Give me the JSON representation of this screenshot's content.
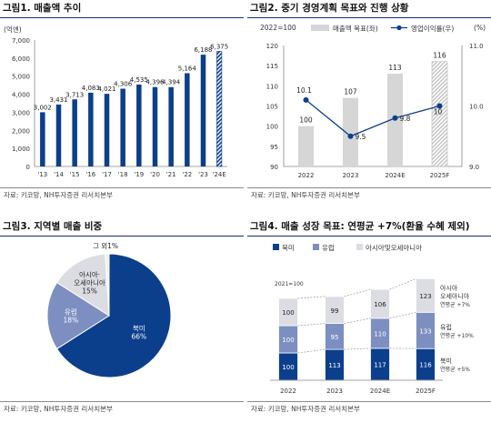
{
  "panels": [
    {
      "title": "그림1. 매출액 추이",
      "source": "자료: 키코망, NH투자증권 리서치본부"
    },
    {
      "title": "그림2. 중기 경영계획 목표와 진행 상황",
      "source": "자료: 키코망, NH투자증권 리서치본부"
    },
    {
      "title": "그림3. 지역별 매출 비중",
      "source": "자료: 키코망, NH투자증권 리서치본부"
    },
    {
      "title": "그림4. 매출 성장 목표: 연평균 +7%(환율 수혜 제외)",
      "source": "자료: 키코망, NH투자증권 리서치본부"
    }
  ],
  "colors": {
    "navy": "#0b3f8c",
    "mid_blue": "#7c8fc0",
    "light": "#dcdde3",
    "gray_bar": "#d6d6d6",
    "line": "#0b3f8c"
  },
  "chart_data": [
    {
      "type": "bar",
      "title": "그림1. 매출액 추이",
      "ylabel": "(억엔)",
      "ylim": [
        0,
        7000
      ],
      "yticks": [
        "0",
        "1,000",
        "2,000",
        "3,000",
        "4,000",
        "5,000",
        "6,000",
        "7,000"
      ],
      "categories": [
        "'13",
        "'14",
        "'15",
        "'16",
        "'17",
        "'18",
        "'19",
        "'20",
        "'21",
        "'22",
        "'23",
        "'24E"
      ],
      "values": [
        3002,
        3431,
        3713,
        4083,
        4021,
        4306,
        4535,
        4396,
        4394,
        5164,
        6188,
        6375
      ],
      "value_labels": [
        "3,002",
        "3,431",
        "3,713",
        "4,083",
        "4,021",
        "4,306",
        "4,535",
        "4,396",
        "4,394",
        "5,164",
        "6,188",
        "6,375"
      ],
      "estimate_last": true
    },
    {
      "type": "bar",
      "title": "그림2. 중기 경영계획 목표와 진행 상황",
      "index_note": "2022=100",
      "right_unit": "(%)",
      "categories": [
        "2022",
        "2023",
        "2024E",
        "2025F"
      ],
      "ylim": [
        90,
        120
      ],
      "yticks": [
        "90",
        "95",
        "100",
        "105",
        "110",
        "115",
        "120"
      ],
      "y2lim": [
        9.0,
        11.0
      ],
      "y2ticks": [
        "9.0",
        "10.0",
        "11.0"
      ],
      "series": [
        {
          "name": "매출액 목표(좌)",
          "kind": "bar",
          "values": [
            100,
            107,
            113,
            116
          ],
          "labels": [
            "100",
            "107",
            "113",
            "116"
          ]
        },
        {
          "name": "영업이익률(우)",
          "kind": "line",
          "values": [
            10.1,
            9.5,
            9.8,
            10.0
          ],
          "labels": [
            "10.1",
            "9.5",
            "9.8",
            "10"
          ]
        }
      ]
    },
    {
      "type": "pie",
      "title": "그림3. 지역별 매출 비중",
      "slices": [
        {
          "name": "북미",
          "value": 66,
          "label": "66%"
        },
        {
          "name": "유럽",
          "value": 18,
          "label": "18%"
        },
        {
          "name": "아시아·오세아니아",
          "value": 15,
          "label": "15%"
        },
        {
          "name": "그 외",
          "value": 1,
          "label": "1%"
        }
      ],
      "slice_text": [
        [
          "북미",
          "66%"
        ],
        [
          "유럽",
          "18%"
        ],
        [
          "아시아·",
          "오세아니아",
          "15%"
        ]
      ],
      "outside_label": "그 외1%"
    },
    {
      "type": "bar",
      "stacked": true,
      "title": "그림4. 매출 성장 목표: 연평균 +7%(환율 수혜 제외)",
      "index_note": "2021=100",
      "categories": [
        "2022",
        "2023",
        "2024E",
        "2025F"
      ],
      "series": [
        {
          "name": "북미",
          "values": [
            100,
            113,
            117,
            116
          ]
        },
        {
          "name": "유럽",
          "values": [
            100,
            95,
            110,
            133
          ]
        },
        {
          "name": "아시아및오세아니아",
          "values": [
            100,
            99,
            106,
            123
          ]
        }
      ],
      "legend": [
        "북미",
        "유럽",
        "아시아및오세아니아"
      ],
      "annotations": [
        {
          "lines": [
            "아시아",
            "오세아니아",
            "연평균 +7%"
          ]
        },
        {
          "lines": [
            "유럽",
            "연평균 +10%"
          ]
        },
        {
          "lines": [
            "북미",
            "연평균 +5%"
          ]
        }
      ]
    }
  ]
}
